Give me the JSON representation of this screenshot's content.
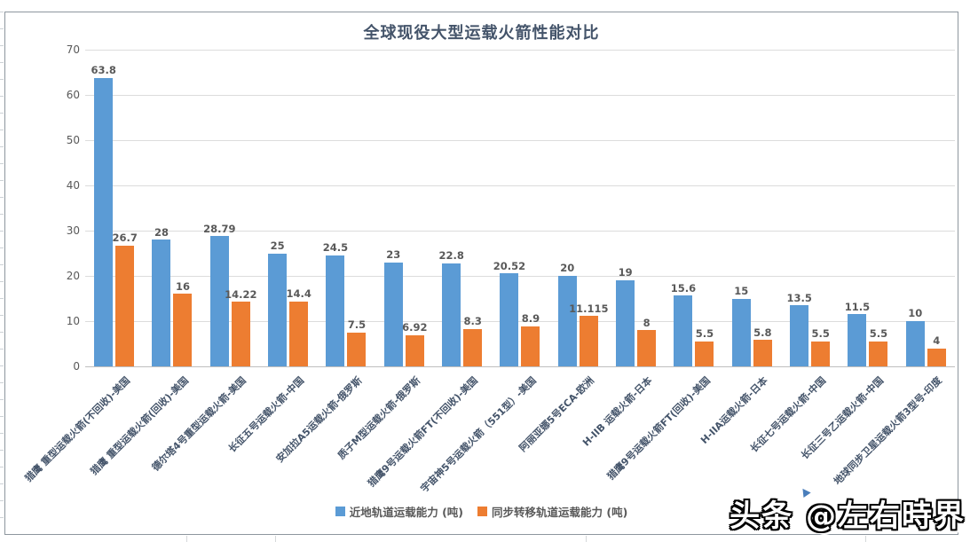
{
  "chart_data": {
    "type": "bar",
    "title": "全球现役大型运载火箭性能对比",
    "categories": [
      "猎鹰 重型运载火箭(不回收)-美国",
      "猎鹰 重型运载火箭(回收)-美国",
      "德尔塔4号重型运载火箭-美国",
      "长征五号运载火箭-中国",
      "安加拉A5运载火箭-俄罗斯",
      "质子M型运载火箭-俄罗斯",
      "猎鹰9号运载火箭FT(不回收)-美国",
      "宇宙神5号运载火箭（551型）-美国",
      "阿丽亚娜5号ECA-欧洲",
      "H-IIB 运载火箭-日本",
      "猎鹰9号运载火箭FT(回收)-美国",
      "H-IIA运载火箭-日本",
      "长征七号运载火箭-中国",
      "长征三号乙运载火箭-中国",
      "地球同步卫星运载火箭3型号-印度"
    ],
    "series": [
      {
        "name": "近地轨道运载能力 (吨)",
        "color": "#5B9BD5",
        "values": [
          63.8,
          28,
          28.79,
          25,
          24.5,
          23,
          22.8,
          20.52,
          20,
          19,
          15.6,
          15,
          13.5,
          11.5,
          10
        ]
      },
      {
        "name": "同步转移轨道运载能力 (吨)",
        "color": "#ED7D31",
        "values": [
          26.7,
          16,
          14.22,
          14.4,
          7.5,
          6.92,
          8.3,
          8.9,
          11.115,
          8,
          5.5,
          5.8,
          5.5,
          5.5,
          4
        ]
      }
    ],
    "ylim": [
      0,
      70
    ],
    "yticks": [
      0,
      10,
      20,
      30,
      40,
      50,
      60,
      70
    ],
    "grid": true,
    "legend_position": "bottom"
  },
  "watermark": {
    "text": "头条 @左右時界"
  }
}
